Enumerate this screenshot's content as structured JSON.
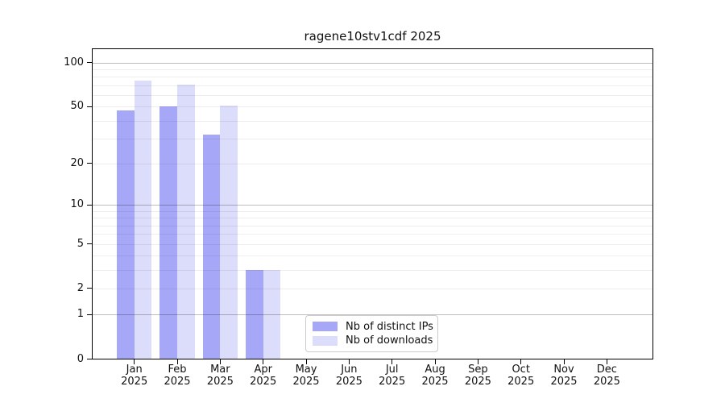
{
  "title": "ragene10stv1cdf 2025",
  "colors": {
    "distinct_ips_bar": "#a7a7f7",
    "downloads_bar": "#dcdcfb",
    "axis_text": "#111111"
  },
  "chart_data": {
    "type": "bar",
    "title": "ragene10stv1cdf 2025",
    "categories": [
      "Jan 2025",
      "Feb 2025",
      "Mar 2025",
      "Apr 2025",
      "May 2025",
      "Jun 2025",
      "Jul 2025",
      "Aug 2025",
      "Sep 2025",
      "Oct 2025",
      "Nov 2025",
      "Dec 2025"
    ],
    "series": [
      {
        "name": "Nb of distinct IPs",
        "color": "#a7a7f7",
        "values": [
          47,
          50,
          32,
          3,
          0,
          0,
          0,
          0,
          0,
          0,
          0,
          0
        ]
      },
      {
        "name": "Nb of downloads",
        "color": "#dcdcfb",
        "values": [
          75,
          71,
          51,
          3,
          0,
          0,
          0,
          0,
          0,
          0,
          0,
          0
        ]
      }
    ],
    "xlabel": "",
    "ylabel": "",
    "y_axis": {
      "scale": "log1p",
      "ticks": [
        0,
        1,
        2,
        5,
        10,
        20,
        50,
        100
      ],
      "major_gridlines": [
        1,
        10,
        100
      ],
      "minor_gridlines": [
        2,
        3,
        4,
        5,
        6,
        7,
        8,
        9,
        20,
        30,
        40,
        50,
        60,
        70,
        80,
        90
      ],
      "ylim": [
        0,
        126
      ]
    },
    "grid": true,
    "legend": {
      "position": "lower-center",
      "entries": [
        "Nb of distinct IPs",
        "Nb of downloads"
      ]
    }
  }
}
